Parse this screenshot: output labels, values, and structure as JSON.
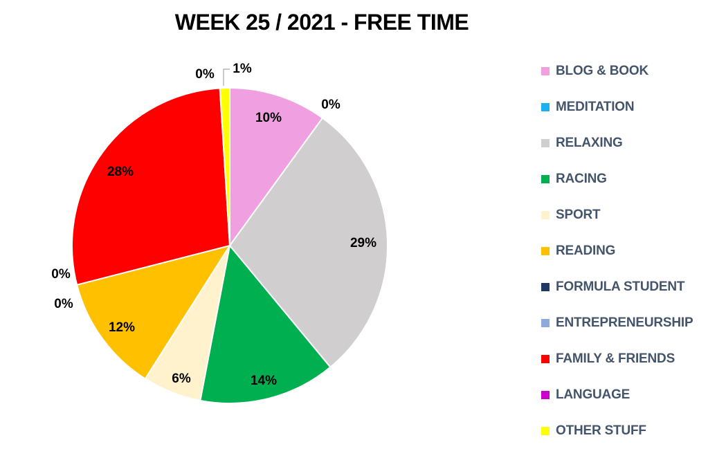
{
  "chart_data": {
    "type": "pie",
    "title": "WEEK 25 / 2021 - FREE TIME",
    "start_angle_deg": 0,
    "direction": "clockwise",
    "legend_position": "right",
    "slices": [
      {
        "label": "BLOG & BOOK",
        "value": 10,
        "display": "10%",
        "color": "#f0a0e0"
      },
      {
        "label": "MEDITATION",
        "value": 0,
        "display": "0%",
        "color": "#1bb1f0"
      },
      {
        "label": "RELAXING",
        "value": 29,
        "display": "29%",
        "color": "#d0cece"
      },
      {
        "label": "RACING",
        "value": 14,
        "display": "14%",
        "color": "#00b050"
      },
      {
        "label": "SPORT",
        "value": 6,
        "display": "6%",
        "color": "#fff2cc"
      },
      {
        "label": "READING",
        "value": 12,
        "display": "12%",
        "color": "#ffc000"
      },
      {
        "label": "FORMULA STUDENT",
        "value": 0,
        "display": "0%",
        "color": "#1f3864"
      },
      {
        "label": "ENTREPRENEURSHIP",
        "value": 0,
        "display": "0%",
        "color": "#8eaadb"
      },
      {
        "label": "FAMILY & FRIENDS",
        "value": 28,
        "display": "28%",
        "color": "#ff0000"
      },
      {
        "label": "LANGUAGE",
        "value": 0,
        "display": "0%",
        "color": "#cc00cc"
      },
      {
        "label": "OTHER STUFF",
        "value": 1,
        "display": "1%",
        "color": "#ffff00"
      }
    ]
  }
}
